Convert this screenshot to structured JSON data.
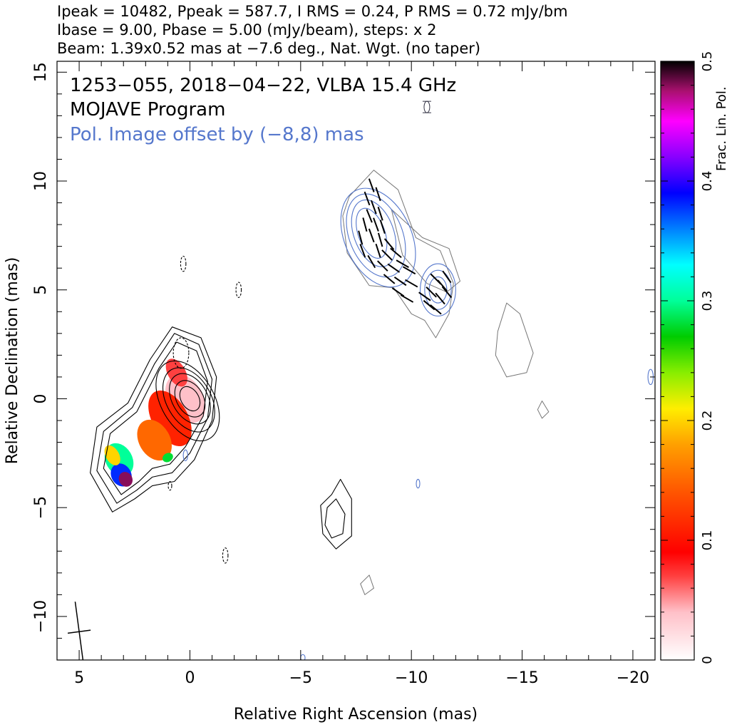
{
  "header": {
    "line1": "Ipeak = 10482, Ppeak = 587.7, I RMS = 0.24, P RMS = 0.72 mJy/bm",
    "line2": "Ibase = 9.00, Pbase = 5.00 (mJy/beam), steps: x 2",
    "line3": "Beam: 1.39x0.52 mas at −7.6 deg., Nat. Wgt. (no taper)"
  },
  "annotations": {
    "source": "1253−055, 2018−04−22, VLBA 15.4 GHz",
    "program": "MOJAVE Program",
    "offset": "Pol. Image offset by (−8,8) mas"
  },
  "colors": {
    "blue_contour": "#5577cc",
    "black_contour": "#000000",
    "grey_contour": "#777777"
  },
  "chart_data": {
    "type": "heatmap",
    "xlabel": "Relative Right Ascension (mas)",
    "ylabel": "Relative Declination (mas)",
    "xlim": [
      6,
      -21
    ],
    "ylim": [
      -12,
      15.5
    ],
    "x_ticks": [
      {
        "v": 5,
        "label": "5"
      },
      {
        "v": 0,
        "label": "0"
      },
      {
        "v": -5,
        "label": "−5"
      },
      {
        "v": -10,
        "label": "−10"
      },
      {
        "v": -15,
        "label": "−15"
      },
      {
        "v": -20,
        "label": "−20"
      }
    ],
    "y_ticks": [
      {
        "v": 15,
        "label": "15"
      },
      {
        "v": 10,
        "label": "10"
      },
      {
        "v": 5,
        "label": "5"
      },
      {
        "v": 0,
        "label": "0"
      },
      {
        "v": -5,
        "label": "−5"
      },
      {
        "v": -10,
        "label": "−10"
      }
    ],
    "colorbar": {
      "label": "Frac. Lin. Pol.",
      "range": [
        0,
        0.5
      ],
      "ticks": [
        {
          "v": 0,
          "label": "0"
        },
        {
          "v": 0.1,
          "label": "0.1"
        },
        {
          "v": 0.2,
          "label": "0.2"
        },
        {
          "v": 0.3,
          "label": "0.3"
        },
        {
          "v": 0.4,
          "label": "0.4"
        },
        {
          "v": 0.5,
          "label": "0.5"
        }
      ]
    },
    "core_contours": [
      {
        "cx": 0.0,
        "cy": 0.0,
        "rx": 0.4,
        "ry": 0.6,
        "rot": -30
      },
      {
        "cx": 0.0,
        "cy": 0.0,
        "rx": 0.6,
        "ry": 0.9,
        "rot": -30
      },
      {
        "cx": 0.0,
        "cy": 0.0,
        "rx": 0.8,
        "ry": 1.25,
        "rot": -30
      },
      {
        "cx": 0.05,
        "cy": -0.05,
        "rx": 1.0,
        "ry": 1.6,
        "rot": -30
      },
      {
        "cx": 0.1,
        "cy": -0.1,
        "rx": 1.2,
        "ry": 2.0,
        "rot": -30
      }
    ],
    "jet_contours": [
      [
        [
          -0.3,
          2.2
        ],
        [
          0.6,
          2.6
        ],
        [
          1.4,
          1.4
        ],
        [
          2.4,
          -0.6
        ],
        [
          3.6,
          -1.6
        ],
        [
          3.9,
          -3.2
        ],
        [
          3.1,
          -4.4
        ],
        [
          2.3,
          -3.8
        ],
        [
          1.7,
          -3.2
        ],
        [
          0.9,
          -3.0
        ],
        [
          0.2,
          -2.2
        ],
        [
          -0.6,
          -0.8
        ],
        [
          -0.8,
          0.8
        ]
      ],
      [
        [
          -0.4,
          2.5
        ],
        [
          0.7,
          3.0
        ],
        [
          1.6,
          1.6
        ],
        [
          2.6,
          -0.4
        ],
        [
          3.9,
          -1.5
        ],
        [
          4.2,
          -3.3
        ],
        [
          3.3,
          -4.8
        ],
        [
          2.4,
          -4.2
        ],
        [
          1.7,
          -3.6
        ],
        [
          0.8,
          -3.4
        ],
        [
          0.0,
          -2.5
        ],
        [
          -0.8,
          -0.9
        ],
        [
          -1.0,
          0.9
        ]
      ],
      [
        [
          -0.5,
          2.8
        ],
        [
          0.8,
          3.3
        ],
        [
          1.8,
          1.8
        ],
        [
          2.8,
          -0.2
        ],
        [
          4.2,
          -1.3
        ],
        [
          4.5,
          -3.4
        ],
        [
          3.5,
          -5.2
        ],
        [
          2.5,
          -4.6
        ],
        [
          1.7,
          -4.0
        ],
        [
          0.7,
          -3.8
        ],
        [
          -0.2,
          -2.8
        ],
        [
          -1.0,
          -1.0
        ],
        [
          -1.2,
          1.0
        ]
      ]
    ],
    "sw_blob_contours": [
      [
        [
          -6.8,
          -3.7
        ],
        [
          -7.3,
          -4.6
        ],
        [
          -7.3,
          -6.3
        ],
        [
          -6.6,
          -6.9
        ],
        [
          -6.0,
          -6.2
        ],
        [
          -5.9,
          -4.9
        ],
        [
          -6.4,
          -4.4
        ]
      ],
      [
        [
          -6.6,
          -4.6
        ],
        [
          -7.0,
          -5.3
        ],
        [
          -6.9,
          -6.2
        ],
        [
          -6.4,
          -6.4
        ],
        [
          -6.1,
          -5.8
        ],
        [
          -6.2,
          -5.0
        ]
      ]
    ],
    "pol_fill": [
      {
        "cx": 0.2,
        "cy": 0.0,
        "rx": 0.8,
        "ry": 1.2,
        "f": 0.04
      },
      {
        "cx": 0.9,
        "cy": -0.9,
        "rx": 0.8,
        "ry": 1.4,
        "f": 0.11
      },
      {
        "cx": 1.6,
        "cy": -1.9,
        "rx": 0.7,
        "ry": 1.0,
        "f": 0.15
      },
      {
        "cx": 0.6,
        "cy": 1.2,
        "rx": 0.4,
        "ry": 0.7,
        "f": 0.07
      },
      {
        "cx": 3.2,
        "cy": -2.8,
        "rx": 0.6,
        "ry": 0.8,
        "f": 0.3
      },
      {
        "cx": 3.1,
        "cy": -3.5,
        "rx": 0.45,
        "ry": 0.55,
        "f": 0.38
      },
      {
        "cx": 2.9,
        "cy": -3.7,
        "rx": 0.3,
        "ry": 0.35,
        "f": 0.48
      },
      {
        "cx": 3.5,
        "cy": -2.6,
        "rx": 0.3,
        "ry": 0.5,
        "f": 0.2
      },
      {
        "cx": 1.0,
        "cy": -2.7,
        "rx": 0.25,
        "ry": 0.2,
        "f": 0.28
      }
    ],
    "pol_contours_main": [
      {
        "cx": -8.2,
        "cy": 7.6,
        "rx": 0.6,
        "ry": 1.2,
        "rot": -20
      },
      {
        "cx": -8.3,
        "cy": 7.6,
        "rx": 0.9,
        "ry": 1.6,
        "rot": -20
      },
      {
        "cx": -8.4,
        "cy": 7.5,
        "rx": 1.2,
        "ry": 2.0,
        "rot": -22
      },
      {
        "cx": -8.5,
        "cy": 7.4,
        "rx": 1.5,
        "ry": 2.4,
        "rot": -25
      }
    ],
    "pol_contours_se": [
      {
        "cx": -11.2,
        "cy": 5.0,
        "rx": 0.4,
        "ry": 0.6,
        "rot": 0
      },
      {
        "cx": -11.2,
        "cy": 5.0,
        "rx": 0.6,
        "ry": 0.9,
        "rot": 0
      },
      {
        "cx": -11.2,
        "cy": 5.0,
        "rx": 0.8,
        "ry": 1.2,
        "rot": 0
      }
    ],
    "offset_total_contour": [
      [
        -7.2,
        9.3
      ],
      [
        -8.3,
        10.5
      ],
      [
        -9.4,
        9.6
      ],
      [
        -10.2,
        7.4
      ],
      [
        -11.3,
        6.8
      ],
      [
        -11.9,
        5.3
      ],
      [
        -11.7,
        3.9
      ],
      [
        -11.1,
        2.8
      ],
      [
        -10.6,
        3.6
      ],
      [
        -10.0,
        3.9
      ],
      [
        -9.2,
        5.1
      ],
      [
        -8.1,
        5.2
      ],
      [
        -7.1,
        6.7
      ],
      [
        -6.9,
        8.4
      ]
    ],
    "offset_tail_contour": [
      [
        -9.1,
        8.7
      ],
      [
        -10.5,
        7.4
      ],
      [
        -11.7,
        6.9
      ],
      [
        -12.2,
        5.4
      ],
      [
        -11.6,
        4.9
      ],
      [
        -10.7,
        5.3
      ],
      [
        -9.6,
        6.6
      ]
    ],
    "far_contours": [
      [
        [
          -13.9,
          3.1
        ],
        [
          -14.3,
          4.4
        ],
        [
          -14.9,
          3.9
        ],
        [
          -15.5,
          2.1
        ],
        [
          -15.2,
          1.2
        ],
        [
          -14.3,
          1.0
        ],
        [
          -13.8,
          2.0
        ]
      ],
      [
        [
          -15.9,
          -0.1
        ],
        [
          -16.2,
          -0.6
        ],
        [
          -15.9,
          -0.9
        ],
        [
          -15.7,
          -0.5
        ]
      ],
      [
        [
          -8.1,
          -8.1
        ],
        [
          -8.3,
          -8.7
        ],
        [
          -7.9,
          -9.0
        ],
        [
          -7.7,
          -8.5
        ]
      ]
    ],
    "neg_contours": [
      {
        "cx": 0.4,
        "cy": 2.1,
        "rx": 0.35,
        "ry": 0.7
      },
      {
        "cx": 0.3,
        "cy": 6.2,
        "rx": 0.12,
        "ry": 0.35
      },
      {
        "cx": -2.2,
        "cy": 5.0,
        "rx": 0.12,
        "ry": 0.35
      },
      {
        "cx": -1.6,
        "cy": -7.2,
        "rx": 0.12,
        "ry": 0.35
      },
      {
        "cx": 0.9,
        "cy": -4.0,
        "rx": 0.08,
        "ry": 0.2
      }
    ],
    "blue_small": [
      {
        "cx": 0.2,
        "cy": -2.6,
        "rx": 0.1,
        "ry": 0.25
      },
      {
        "cx": -10.3,
        "cy": -3.9,
        "rx": 0.08,
        "ry": 0.2
      },
      {
        "cx": -20.8,
        "cy": 1.0,
        "rx": 0.12,
        "ry": 0.35
      },
      {
        "cx": -5.1,
        "cy": -11.9,
        "rx": 0.1,
        "ry": 0.15
      }
    ],
    "evpa_ticks": [
      [
        -8.2,
        9.8,
        70
      ],
      [
        -8.0,
        9.2,
        70
      ],
      [
        -8.5,
        9.4,
        72
      ],
      [
        -8.3,
        8.8,
        70
      ],
      [
        -8.6,
        8.5,
        72
      ],
      [
        -8.1,
        8.4,
        68
      ],
      [
        -8.4,
        8.0,
        70
      ],
      [
        -8.7,
        7.9,
        72
      ],
      [
        -8.2,
        7.5,
        70
      ],
      [
        -8.6,
        7.3,
        74
      ],
      [
        -9.0,
        7.1,
        50
      ],
      [
        -8.5,
        6.8,
        72
      ],
      [
        -8.9,
        6.6,
        45
      ],
      [
        -9.3,
        6.7,
        40
      ],
      [
        -8.7,
        6.1,
        45
      ],
      [
        -9.2,
        6.0,
        35
      ],
      [
        -9.6,
        6.2,
        30
      ],
      [
        -9.9,
        5.9,
        30
      ],
      [
        -9.0,
        5.5,
        40
      ],
      [
        -9.5,
        5.4,
        35
      ],
      [
        -10.0,
        5.3,
        30
      ],
      [
        -9.4,
        4.9,
        35
      ],
      [
        -9.8,
        4.6,
        30
      ],
      [
        -7.9,
        8.0,
        75
      ],
      [
        -7.7,
        7.4,
        75
      ],
      [
        -7.8,
        6.8,
        70
      ],
      [
        -11.1,
        5.5,
        45
      ],
      [
        -11.4,
        5.2,
        50
      ],
      [
        -10.9,
        4.9,
        45
      ],
      [
        -11.3,
        4.6,
        50
      ],
      [
        -11.6,
        4.9,
        50
      ],
      [
        -10.8,
        4.3,
        40
      ],
      [
        -11.1,
        4.1,
        40
      ],
      [
        -11.6,
        5.6,
        55
      ],
      [
        -10.6,
        4.7,
        35
      ],
      [
        -8.2,
        6.3,
        60
      ]
    ],
    "beam_marker": {
      "x": -10.7,
      "y": 13.4
    },
    "beam_bottom": {
      "x": 5.0,
      "y": -10.7,
      "major": 1.39,
      "minor": 0.52,
      "pa": -7.6
    }
  }
}
